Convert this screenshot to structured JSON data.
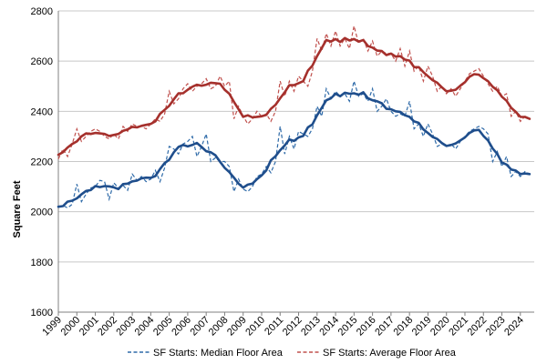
{
  "chart_data": {
    "type": "line",
    "title": "",
    "xlabel": "",
    "ylabel": "Square Feet",
    "xlim": [
      1999.0,
      2024.75
    ],
    "ylim": [
      1600,
      2800
    ],
    "yticks": [
      1600,
      1800,
      2000,
      2200,
      2400,
      2600,
      2800
    ],
    "xticks": [
      "1999",
      "2000",
      "2001",
      "2002",
      "2003",
      "2004",
      "2005",
      "2006",
      "2007",
      "2008",
      "2009",
      "2010",
      "2011",
      "2012",
      "2013",
      "2014",
      "2015",
      "2016",
      "2017",
      "2018",
      "2019",
      "2020",
      "2021",
      "2022",
      "2023",
      "2024"
    ],
    "grid": "horizontal",
    "legend": "bottom",
    "colors": {
      "median": "#2E6AA8",
      "median_smooth": "#1F4E8C",
      "average": "#C0504D",
      "average_smooth": "#A5302C",
      "grid": "#C8C8C8",
      "axis": "#808080"
    },
    "series": [
      {
        "name": "SF Starts: Median Floor Area",
        "style": "dashed",
        "x": [
          1999.0,
          1999.25,
          1999.5,
          1999.75,
          2000.0,
          2000.25,
          2000.5,
          2000.75,
          2001.0,
          2001.25,
          2001.5,
          2001.75,
          2002.0,
          2002.25,
          2002.5,
          2002.75,
          2003.0,
          2003.25,
          2003.5,
          2003.75,
          2004.0,
          2004.25,
          2004.5,
          2004.75,
          2005.0,
          2005.25,
          2005.5,
          2005.75,
          2006.0,
          2006.25,
          2006.5,
          2006.75,
          2007.0,
          2007.25,
          2007.5,
          2007.75,
          2008.0,
          2008.25,
          2008.5,
          2008.75,
          2009.0,
          2009.25,
          2009.5,
          2009.75,
          2010.0,
          2010.25,
          2010.5,
          2010.75,
          2011.0,
          2011.25,
          2011.5,
          2011.75,
          2012.0,
          2012.25,
          2012.5,
          2012.75,
          2013.0,
          2013.25,
          2013.5,
          2013.75,
          2014.0,
          2014.25,
          2014.5,
          2014.75,
          2015.0,
          2015.25,
          2015.5,
          2015.75,
          2016.0,
          2016.25,
          2016.5,
          2016.75,
          2017.0,
          2017.25,
          2017.5,
          2017.75,
          2018.0,
          2018.25,
          2018.5,
          2018.75,
          2019.0,
          2019.25,
          2019.5,
          2019.75,
          2020.0,
          2020.25,
          2020.5,
          2020.75,
          2021.0,
          2021.25,
          2021.5,
          2021.75,
          2022.0,
          2022.25,
          2022.5,
          2022.75,
          2023.0,
          2023.25,
          2023.5,
          2023.75,
          2024.0,
          2024.25,
          2024.5
        ],
        "values": [
          2020,
          2025,
          2015,
          2030,
          2110,
          2040,
          2070,
          2095,
          2100,
          2125,
          2120,
          2050,
          2115,
          2095,
          2105,
          2085,
          2150,
          2125,
          2140,
          2120,
          2130,
          2165,
          2120,
          2175,
          2260,
          2250,
          2230,
          2270,
          2280,
          2300,
          2220,
          2260,
          2310,
          2200,
          2215,
          2200,
          2200,
          2180,
          2080,
          2130,
          2090,
          2080,
          2100,
          2140,
          2150,
          2180,
          2155,
          2200,
          2340,
          2230,
          2300,
          2250,
          2320,
          2310,
          2300,
          2330,
          2420,
          2380,
          2490,
          2450,
          2480,
          2460,
          2470,
          2440,
          2520,
          2460,
          2470,
          2440,
          2490,
          2400,
          2420,
          2450,
          2400,
          2380,
          2390,
          2380,
          2440,
          2330,
          2350,
          2300,
          2350,
          2310,
          2260,
          2270,
          2260,
          2270,
          2250,
          2280,
          2300,
          2320,
          2330,
          2340,
          2330,
          2310,
          2200,
          2240,
          2180,
          2220,
          2140,
          2160,
          2140,
          2160,
          2150
        ]
      },
      {
        "name": "SF Starts: Average Floor Area",
        "style": "dashed",
        "x": [
          1999.0,
          1999.25,
          1999.5,
          1999.75,
          2000.0,
          2000.25,
          2000.5,
          2000.75,
          2001.0,
          2001.25,
          2001.5,
          2001.75,
          2002.0,
          2002.25,
          2002.5,
          2002.75,
          2003.0,
          2003.25,
          2003.5,
          2003.75,
          2004.0,
          2004.25,
          2004.5,
          2004.75,
          2005.0,
          2005.25,
          2005.5,
          2005.75,
          2006.0,
          2006.25,
          2006.5,
          2006.75,
          2007.0,
          2007.25,
          2007.5,
          2007.75,
          2008.0,
          2008.25,
          2008.5,
          2008.75,
          2009.0,
          2009.25,
          2009.5,
          2009.75,
          2010.0,
          2010.25,
          2010.5,
          2010.75,
          2011.0,
          2011.25,
          2011.5,
          2011.75,
          2012.0,
          2012.25,
          2012.5,
          2012.75,
          2013.0,
          2013.25,
          2013.5,
          2013.75,
          2014.0,
          2014.25,
          2014.5,
          2014.75,
          2015.0,
          2015.25,
          2015.5,
          2015.75,
          2016.0,
          2016.25,
          2016.5,
          2016.75,
          2017.0,
          2017.25,
          2017.5,
          2017.75,
          2018.0,
          2018.25,
          2018.5,
          2018.75,
          2019.0,
          2019.25,
          2019.5,
          2019.75,
          2020.0,
          2020.25,
          2020.5,
          2020.75,
          2021.0,
          2021.25,
          2021.5,
          2021.75,
          2022.0,
          2022.25,
          2022.5,
          2022.75,
          2023.0,
          2023.25,
          2023.5,
          2023.75,
          2024.0,
          2024.25,
          2024.5
        ],
        "values": [
          2210,
          2250,
          2220,
          2270,
          2330,
          2280,
          2300,
          2320,
          2330,
          2320,
          2300,
          2290,
          2310,
          2290,
          2340,
          2320,
          2350,
          2340,
          2340,
          2330,
          2350,
          2370,
          2360,
          2390,
          2480,
          2430,
          2450,
          2490,
          2510,
          2480,
          2500,
          2510,
          2530,
          2490,
          2500,
          2540,
          2500,
          2520,
          2370,
          2420,
          2380,
          2350,
          2370,
          2400,
          2380,
          2390,
          2360,
          2400,
          2520,
          2460,
          2520,
          2480,
          2540,
          2520,
          2500,
          2560,
          2690,
          2640,
          2710,
          2660,
          2720,
          2660,
          2690,
          2650,
          2740,
          2670,
          2690,
          2640,
          2680,
          2620,
          2640,
          2630,
          2630,
          2600,
          2650,
          2580,
          2640,
          2560,
          2580,
          2520,
          2580,
          2540,
          2480,
          2500,
          2470,
          2490,
          2460,
          2490,
          2520,
          2550,
          2560,
          2570,
          2540,
          2510,
          2480,
          2500,
          2460,
          2470,
          2380,
          2400,
          2360,
          2380,
          2370
        ]
      }
    ],
    "legend_entries": [
      {
        "label": "SF Starts: Median Floor Area",
        "color": "#2E6AA8"
      },
      {
        "label": "SF Starts: Average Floor Area",
        "color": "#C0504D"
      }
    ]
  }
}
